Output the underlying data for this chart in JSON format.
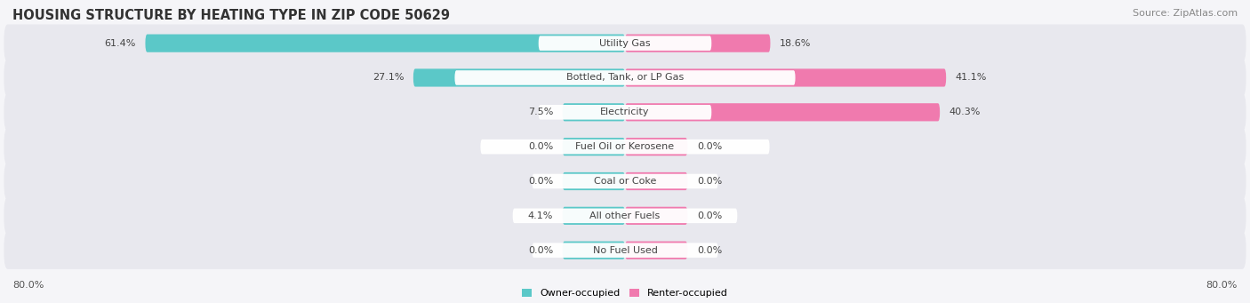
{
  "title": "HOUSING STRUCTURE BY HEATING TYPE IN ZIP CODE 50629",
  "source": "Source: ZipAtlas.com",
  "categories": [
    "Utility Gas",
    "Bottled, Tank, or LP Gas",
    "Electricity",
    "Fuel Oil or Kerosene",
    "Coal or Coke",
    "All other Fuels",
    "No Fuel Used"
  ],
  "owner_values": [
    61.4,
    27.1,
    7.5,
    0.0,
    0.0,
    4.1,
    0.0
  ],
  "renter_values": [
    18.6,
    41.1,
    40.3,
    0.0,
    0.0,
    0.0,
    0.0
  ],
  "owner_color": "#5BC8C8",
  "renter_color": "#F07AAE",
  "owner_label": "Owner-occupied",
  "renter_label": "Renter-occupied",
  "x_min": -80.0,
  "x_max": 80.0,
  "min_bar_width": 8.0,
  "background_color": "#f5f5f8",
  "row_bg_color": "#e8e8ee",
  "title_fontsize": 10.5,
  "source_fontsize": 8,
  "label_fontsize": 8,
  "value_fontsize": 8
}
